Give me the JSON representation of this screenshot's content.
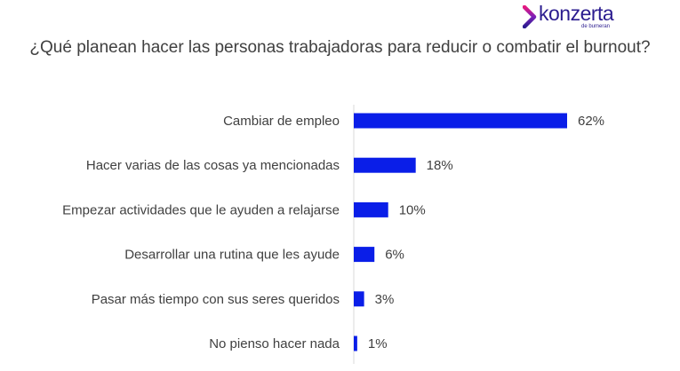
{
  "brand": {
    "name": "konzerta",
    "tagline": "de bumeran",
    "colors": {
      "primary": "#2b1c8f",
      "accent": "#e6197f",
      "mid": "#7a1fb8"
    }
  },
  "chart_data": {
    "type": "bar",
    "orientation": "horizontal",
    "title": "¿Qué planean hacer las personas trabajadoras para reducir o combatir el burnout?",
    "categories": [
      "Cambiar de empleo",
      "Hacer varias de las cosas ya mencionadas",
      "Empezar actividades que le ayuden a relajarse",
      "Desarrollar una rutina que les ayude",
      "Pasar más tiempo con sus seres queridos",
      "No pienso hacer nada"
    ],
    "values": [
      62,
      18,
      10,
      6,
      3,
      1
    ],
    "value_labels": [
      "62%",
      "18%",
      "10%",
      "6%",
      "3%",
      "1%"
    ],
    "xlim": [
      0,
      100
    ],
    "bar_color": "#0a1ee8",
    "grid": false
  }
}
